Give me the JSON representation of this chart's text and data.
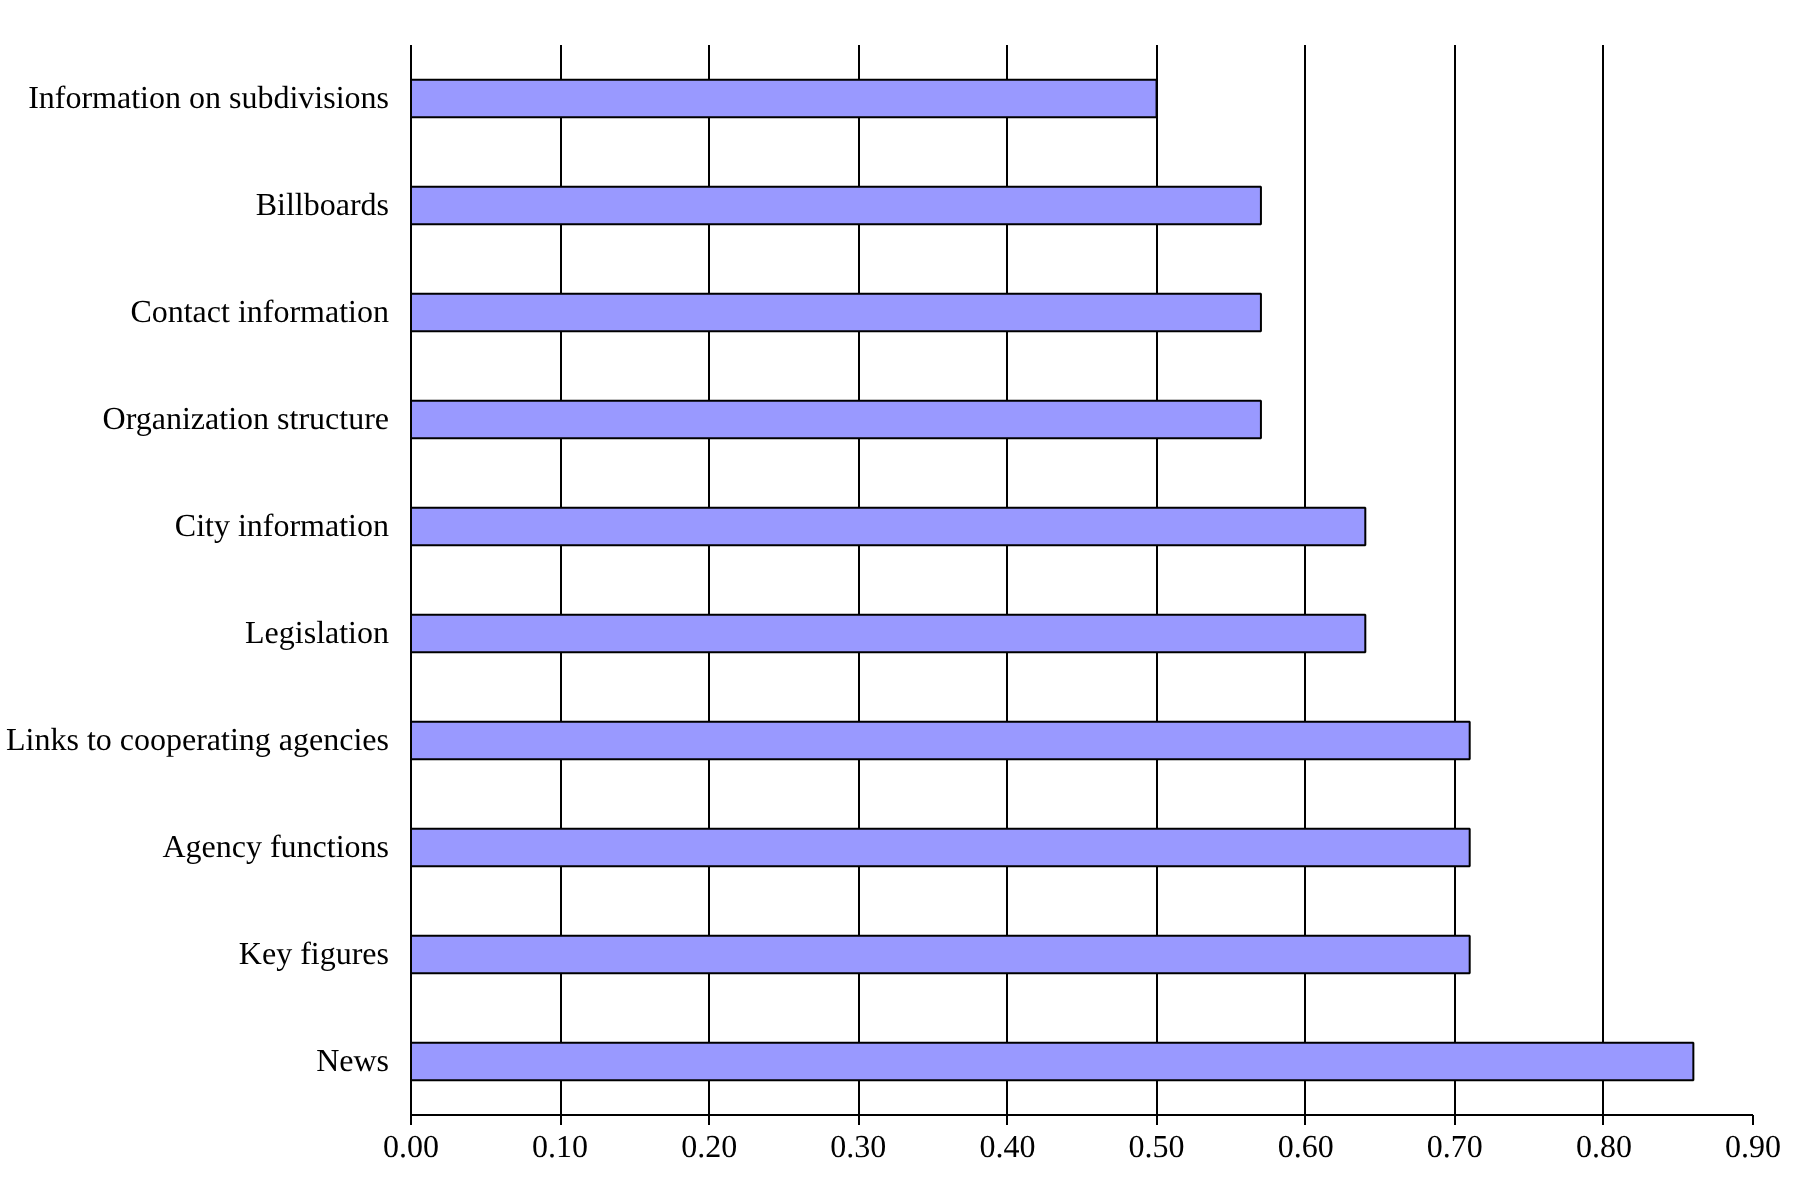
{
  "chart_data": {
    "type": "bar",
    "orientation": "horizontal",
    "categories": [
      "Information on subdivisions",
      "Billboards",
      "Contact information",
      "Organization structure",
      "City information",
      "Legislation",
      "Links to cooperating agencies",
      "Agency functions",
      "Key figures",
      "News"
    ],
    "values": [
      0.5,
      0.57,
      0.57,
      0.57,
      0.64,
      0.64,
      0.71,
      0.71,
      0.71,
      0.86
    ],
    "color": "#9999ff",
    "xlim": [
      0,
      0.9
    ],
    "xticks": [
      {
        "value": 0,
        "label": "0.00"
      },
      {
        "value": 0.1,
        "label": "0.10"
      },
      {
        "value": 0.2,
        "label": "0.20"
      },
      {
        "value": 0.3,
        "label": "0.30"
      },
      {
        "value": 0.4,
        "label": "0.40"
      },
      {
        "value": 0.5,
        "label": "0.50"
      },
      {
        "value": 0.6,
        "label": "0.60"
      },
      {
        "value": 0.7,
        "label": "0.70"
      },
      {
        "value": 0.8,
        "label": "0.80"
      },
      {
        "value": 0.9,
        "label": "0.90"
      }
    ],
    "grid": "x"
  }
}
